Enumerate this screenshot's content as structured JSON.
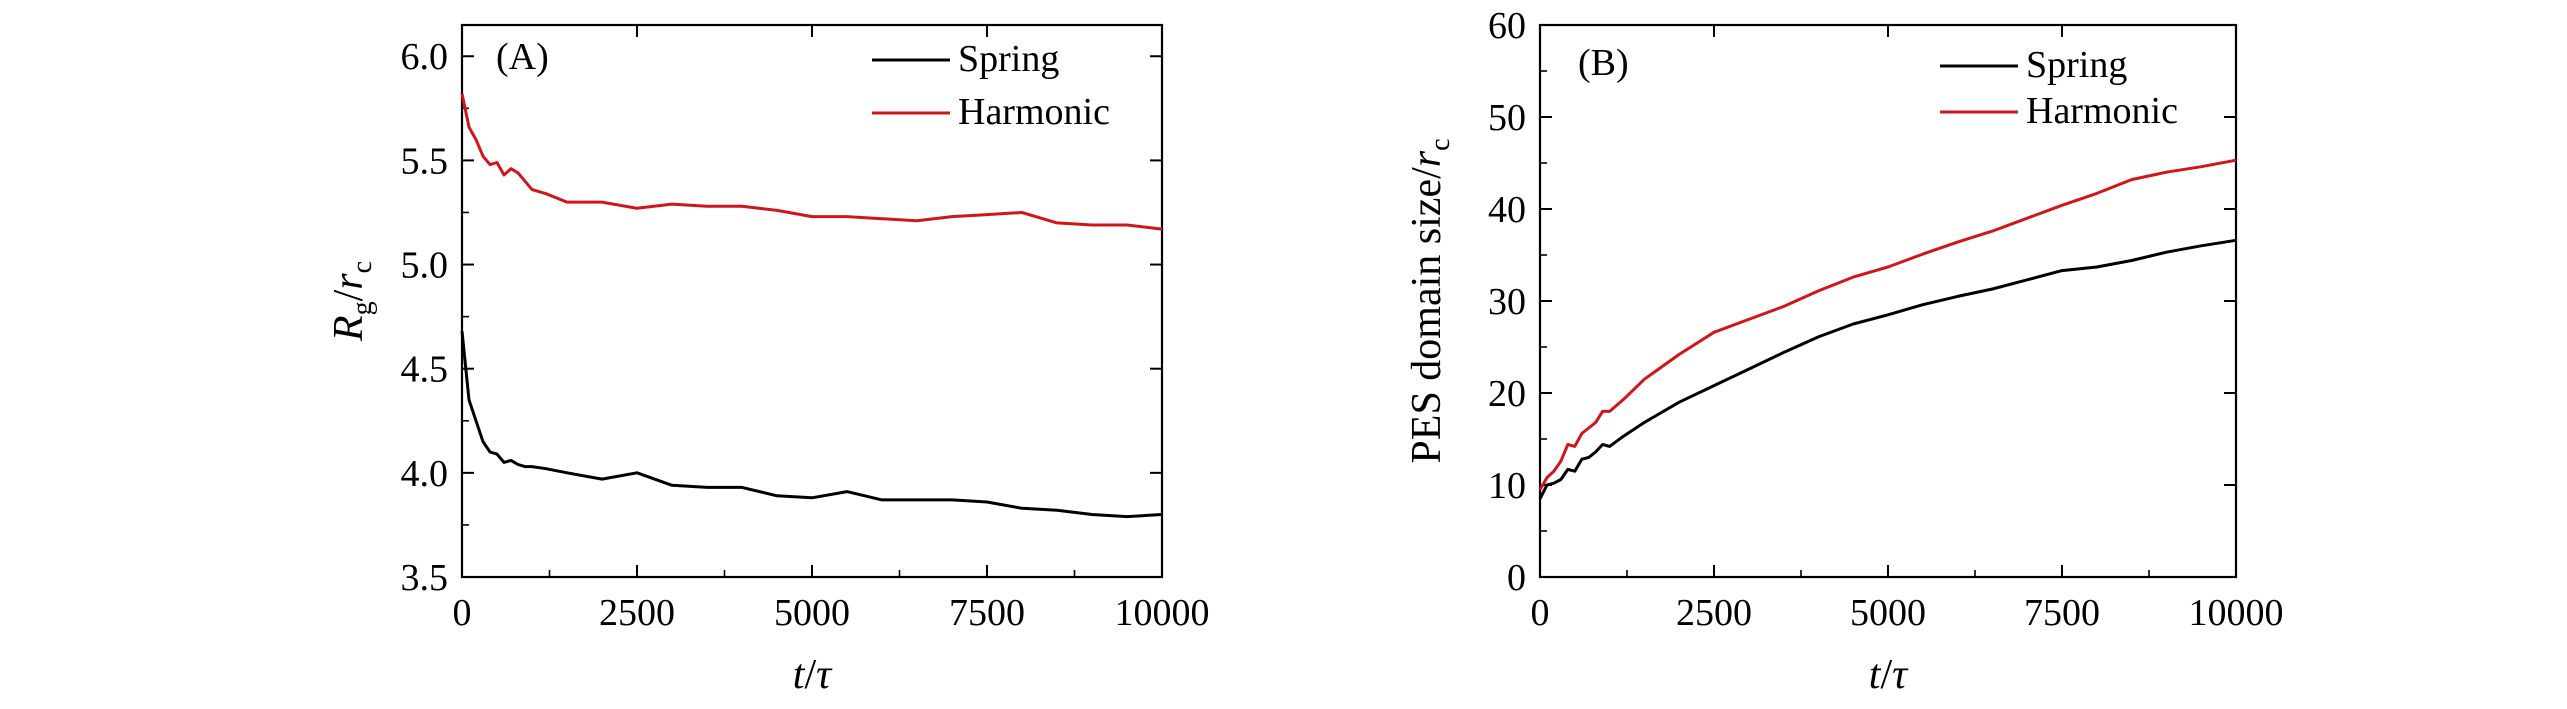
{
  "colors": {
    "spring": "#000000",
    "harmonic": "#d0161b"
  },
  "chart_data": [
    {
      "type": "line",
      "panel_label": "(A)",
      "xlabel_main": "t",
      "xlabel_sep": "/",
      "xlabel_unit": "τ",
      "ylabel_main": "R",
      "ylabel_main_sub": "g",
      "ylabel_sep": "/",
      "ylabel_unit": "r",
      "ylabel_unit_sub": "c",
      "xlim": [
        0,
        10000
      ],
      "ylim": [
        3.5,
        6.15
      ],
      "x_ticks": [
        0,
        2500,
        5000,
        7500,
        10000
      ],
      "x_tick_labels": [
        "0",
        "2500",
        "5000",
        "7500",
        "10000"
      ],
      "y_ticks": [
        3.5,
        4.0,
        4.5,
        5.0,
        5.5,
        6.0
      ],
      "y_tick_labels": [
        "3.5",
        "4.0",
        "4.5",
        "5.0",
        "5.5",
        "6.0"
      ],
      "legend_position": "top-right",
      "series": [
        {
          "name": "Spring",
          "color_key": "spring",
          "points": [
            [
              0,
              4.68
            ],
            [
              100,
              4.35
            ],
            [
              200,
              4.25
            ],
            [
              300,
              4.15
            ],
            [
              400,
              4.1
            ],
            [
              500,
              4.09
            ],
            [
              600,
              4.05
            ],
            [
              700,
              4.06
            ],
            [
              800,
              4.04
            ],
            [
              900,
              4.03
            ],
            [
              1000,
              4.03
            ],
            [
              1200,
              4.02
            ],
            [
              1500,
              4.0
            ],
            [
              2000,
              3.97
            ],
            [
              2500,
              4.0
            ],
            [
              3000,
              3.94
            ],
            [
              3500,
              3.93
            ],
            [
              4000,
              3.93
            ],
            [
              4500,
              3.89
            ],
            [
              5000,
              3.88
            ],
            [
              5500,
              3.91
            ],
            [
              6000,
              3.87
            ],
            [
              6500,
              3.87
            ],
            [
              7000,
              3.87
            ],
            [
              7500,
              3.86
            ],
            [
              8000,
              3.83
            ],
            [
              8500,
              3.82
            ],
            [
              9000,
              3.8
            ],
            [
              9500,
              3.79
            ],
            [
              10000,
              3.8
            ]
          ]
        },
        {
          "name": "Harmonic",
          "color_key": "harmonic",
          "points": [
            [
              0,
              5.82
            ],
            [
              100,
              5.66
            ],
            [
              200,
              5.6
            ],
            [
              300,
              5.52
            ],
            [
              400,
              5.48
            ],
            [
              500,
              5.49
            ],
            [
              600,
              5.43
            ],
            [
              700,
              5.46
            ],
            [
              800,
              5.44
            ],
            [
              900,
              5.4
            ],
            [
              1000,
              5.36
            ],
            [
              1200,
              5.34
            ],
            [
              1500,
              5.3
            ],
            [
              2000,
              5.3
            ],
            [
              2500,
              5.27
            ],
            [
              3000,
              5.29
            ],
            [
              3500,
              5.28
            ],
            [
              4000,
              5.28
            ],
            [
              4500,
              5.26
            ],
            [
              5000,
              5.23
            ],
            [
              5500,
              5.23
            ],
            [
              6000,
              5.22
            ],
            [
              6500,
              5.21
            ],
            [
              7000,
              5.23
            ],
            [
              7500,
              5.24
            ],
            [
              8000,
              5.25
            ],
            [
              8500,
              5.2
            ],
            [
              9000,
              5.19
            ],
            [
              9500,
              5.19
            ],
            [
              10000,
              5.17
            ]
          ]
        }
      ]
    },
    {
      "type": "line",
      "panel_label": "(B)",
      "xlabel_main": "t",
      "xlabel_sep": "/",
      "xlabel_unit": "τ",
      "ylabel_main": "PES domain size",
      "ylabel_sep": "/",
      "ylabel_unit": "r",
      "ylabel_unit_sub": "c",
      "xlim": [
        0,
        10000
      ],
      "ylim": [
        0,
        60
      ],
      "x_ticks": [
        0,
        2500,
        5000,
        7500,
        10000
      ],
      "x_tick_labels": [
        "0",
        "2500",
        "5000",
        "7500",
        "10000"
      ],
      "y_ticks": [
        0,
        10,
        20,
        30,
        40,
        50,
        60
      ],
      "y_tick_labels": [
        "0",
        "10",
        "20",
        "30",
        "40",
        "50",
        "60"
      ],
      "legend_position": "top-right",
      "series": [
        {
          "name": "Spring",
          "color_key": "spring",
          "points": [
            [
              0,
              8.5
            ],
            [
              100,
              10.0
            ],
            [
              200,
              10.2
            ],
            [
              300,
              10.6
            ],
            [
              400,
              11.7
            ],
            [
              500,
              11.5
            ],
            [
              600,
              12.8
            ],
            [
              700,
              13.0
            ],
            [
              800,
              13.6
            ],
            [
              900,
              14.4
            ],
            [
              1000,
              14.2
            ],
            [
              1200,
              15.3
            ],
            [
              1500,
              16.8
            ],
            [
              2000,
              19.0
            ],
            [
              2500,
              20.8
            ],
            [
              3000,
              22.6
            ],
            [
              3500,
              24.4
            ],
            [
              4000,
              26.1
            ],
            [
              4500,
              27.5
            ],
            [
              5000,
              28.5
            ],
            [
              5500,
              29.6
            ],
            [
              6000,
              30.5
            ],
            [
              6500,
              31.3
            ],
            [
              7000,
              32.3
            ],
            [
              7500,
              33.3
            ],
            [
              8000,
              33.7
            ],
            [
              8500,
              34.4
            ],
            [
              9000,
              35.3
            ],
            [
              9500,
              36.0
            ],
            [
              10000,
              36.6
            ]
          ]
        },
        {
          "name": "Harmonic",
          "color_key": "harmonic",
          "points": [
            [
              0,
              9.5
            ],
            [
              100,
              10.8
            ],
            [
              200,
              11.5
            ],
            [
              300,
              12.6
            ],
            [
              400,
              14.4
            ],
            [
              500,
              14.2
            ],
            [
              600,
              15.6
            ],
            [
              700,
              16.2
            ],
            [
              800,
              16.8
            ],
            [
              900,
              18.0
            ],
            [
              1000,
              18.0
            ],
            [
              1200,
              19.3
            ],
            [
              1500,
              21.5
            ],
            [
              2000,
              24.2
            ],
            [
              2500,
              26.6
            ],
            [
              3000,
              28.0
            ],
            [
              3500,
              29.4
            ],
            [
              4000,
              31.1
            ],
            [
              4500,
              32.6
            ],
            [
              5000,
              33.7
            ],
            [
              5500,
              35.1
            ],
            [
              6000,
              36.4
            ],
            [
              6500,
              37.6
            ],
            [
              7000,
              39.0
            ],
            [
              7500,
              40.4
            ],
            [
              8000,
              41.7
            ],
            [
              8500,
              43.2
            ],
            [
              9000,
              44.0
            ],
            [
              9500,
              44.6
            ],
            [
              10000,
              45.3
            ]
          ]
        }
      ]
    }
  ]
}
